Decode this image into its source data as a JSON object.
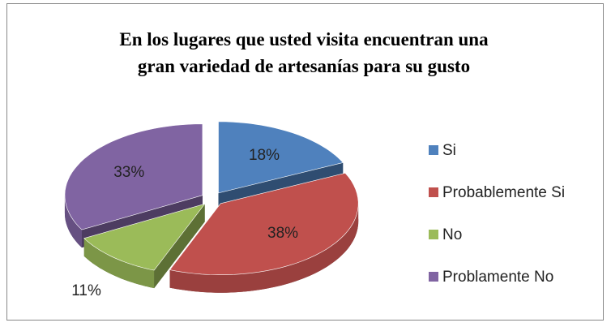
{
  "chart_data": {
    "type": "pie",
    "title": [
      "En los lugares que usted visita encuentran una",
      "gran variedad de artesanías para su gusto"
    ],
    "categories": [
      "Si",
      "Probablemente Si",
      "No",
      "Problamente No"
    ],
    "values": [
      18,
      38,
      11,
      33
    ],
    "value_labels": [
      "18%",
      "38%",
      "11%",
      "33%"
    ],
    "colors": [
      "#4f81bd",
      "#c0504d",
      "#9bbb59",
      "#8064a2"
    ],
    "legend": "right"
  }
}
